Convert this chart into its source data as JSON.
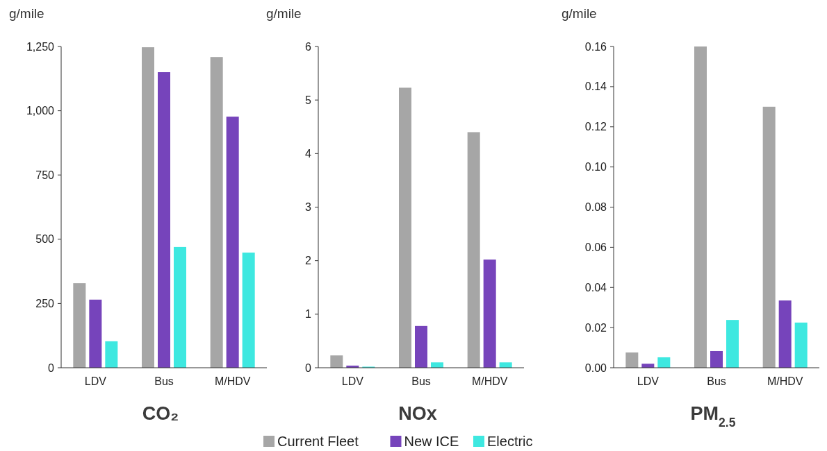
{
  "chart_data": [
    {
      "type": "bar",
      "title": "CO₂",
      "ylabel": "g/mile",
      "categories": [
        "LDV",
        "Bus",
        "M/HDV"
      ],
      "ylim": [
        0,
        1250
      ],
      "yticks": [
        0,
        250,
        500,
        750,
        {
          "value": 1000,
          "label": "1,000"
        },
        {
          "value": 1250,
          "label": "1,250"
        }
      ],
      "grid": false,
      "legend": "bottom",
      "series": [
        {
          "name": "Current Fleet",
          "color": "#a6a6a6",
          "values": [
            329,
            1247,
            1209
          ]
        },
        {
          "name": "New ICE",
          "color": "#7644bb",
          "values": [
            265,
            1150,
            977
          ]
        },
        {
          "name": "Electric",
          "color": "#3ee8e0",
          "values": [
            103,
            470,
            448
          ]
        }
      ]
    },
    {
      "type": "bar",
      "title": "NOx",
      "ylabel": "g/mile",
      "categories": [
        "LDV",
        "Bus",
        "M/HDV"
      ],
      "ylim": [
        0,
        6
      ],
      "yticks": [
        0,
        1,
        2,
        3,
        4,
        5,
        6
      ],
      "grid": false,
      "series": [
        {
          "color": "#a6a6a6",
          "values": [
            0.23,
            5.23,
            4.4
          ]
        },
        {
          "color": "#7644bb",
          "values": [
            0.04,
            0.78,
            2.02
          ]
        },
        {
          "color": "#3ee8e0",
          "values": [
            0.02,
            0.1,
            0.1
          ]
        }
      ]
    },
    {
      "type": "bar",
      "title": "PM$_{2.5}$",
      "ylabel": "g/mile",
      "categories": [
        "LDV",
        "Bus",
        "M/HDV"
      ],
      "ylim": [
        0,
        0.16
      ],
      "yticks": [
        {
          "value": 0,
          "label": "0.00"
        },
        {
          "value": 0.02,
          "label": "0.02"
        },
        {
          "value": 0.04,
          "label": "0.04"
        },
        {
          "value": 0.06,
          "label": "0.06"
        },
        {
          "value": 0.08,
          "label": "0.08"
        },
        {
          "value": 0.1,
          "label": "0.10"
        },
        {
          "value": 0.12,
          "label": "0.12"
        },
        {
          "value": 0.14,
          "label": "0.14"
        },
        {
          "value": 0.16,
          "label": "0.16"
        }
      ],
      "grid": false,
      "series": [
        {
          "color": "#a6a6a6",
          "values": [
            0.0076,
            0.16,
            0.13
          ]
        },
        {
          "color": "#7644bb",
          "values": [
            0.002,
            0.0083,
            0.0335
          ]
        },
        {
          "color": "#3ee8e0",
          "values": [
            0.0052,
            0.0238,
            0.0225
          ]
        }
      ]
    }
  ]
}
